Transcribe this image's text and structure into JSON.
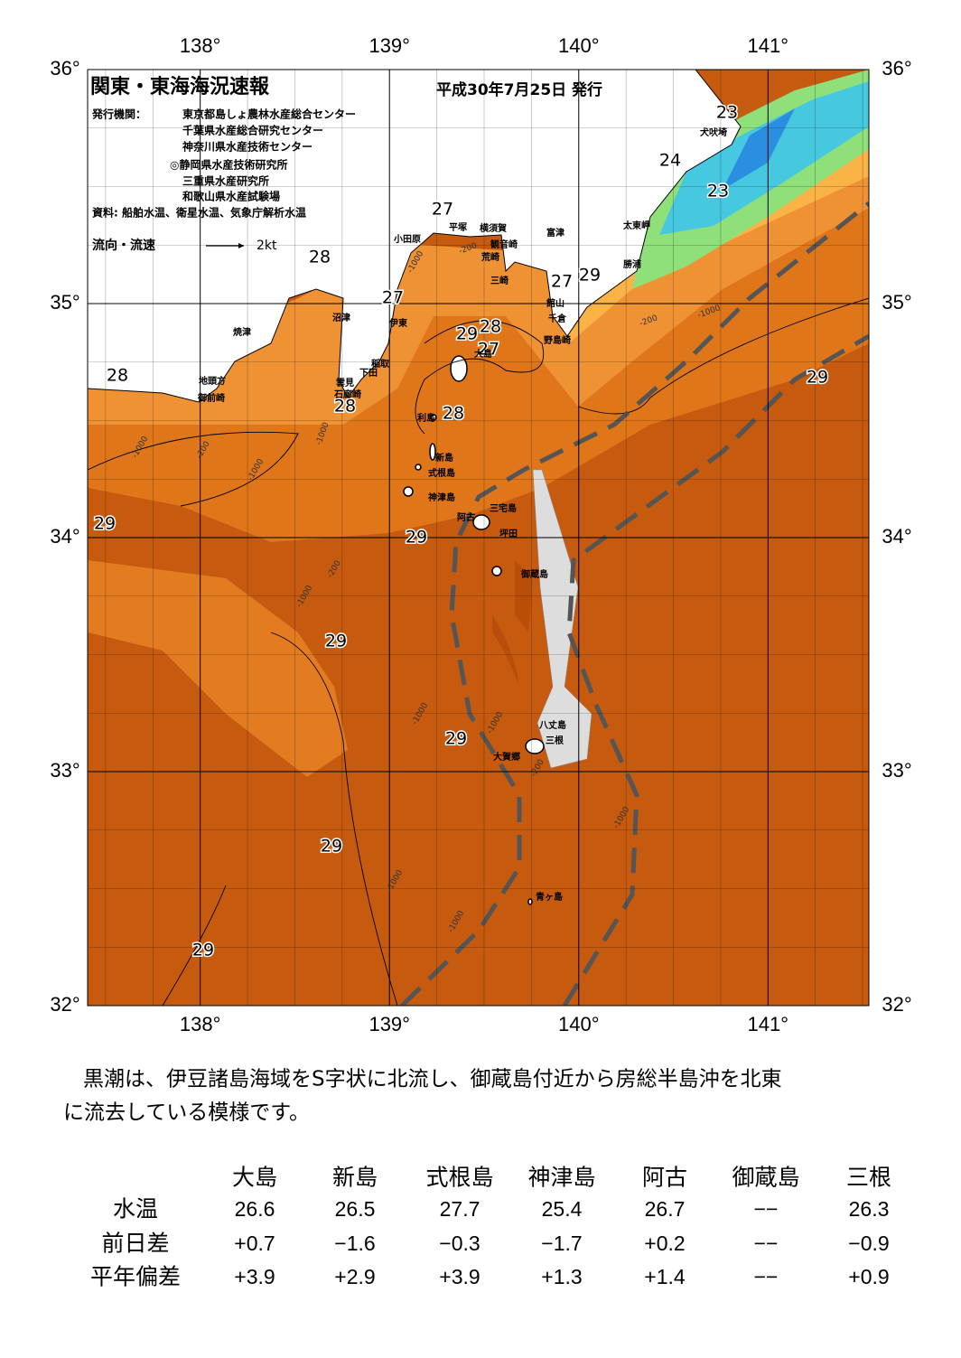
{
  "header": {
    "title": "関東・東海海況速報",
    "issued": "平成30年7月25日 発行",
    "publisher_label": "発行機関：",
    "publishers": [
      "東京都島しょ農林水産総合センター",
      "千葉県水産総合研究センター",
      "神奈川県水産技術センター",
      "◎静岡県水産技術研究所",
      "三重県水産研究所",
      "和歌山県水産試験場"
    ],
    "sources": "資料: 船舶水温、衛星水温、気象庁解析水温",
    "legend_label": "流向・流速",
    "legend_scale": "2kt"
  },
  "map": {
    "lonlim": [
      137.405,
      141.533
    ],
    "latlim": [
      32,
      36
    ],
    "lon_ticks": [
      {
        "value": 138,
        "label": "138°"
      },
      {
        "value": 139,
        "label": "139°"
      },
      {
        "value": 140,
        "label": "140°"
      },
      {
        "value": 141,
        "label": "141°"
      }
    ],
    "lat_ticks": [
      {
        "value": 32,
        "label": "32°"
      },
      {
        "value": 33,
        "label": "33°"
      },
      {
        "value": 34,
        "label": "34°"
      },
      {
        "value": 35,
        "label": "35°"
      },
      {
        "value": 36,
        "label": "36°"
      }
    ],
    "minor_step": 0.25,
    "temperature_labels": [
      23,
      24,
      23,
      27,
      28,
      27,
      27,
      29,
      29,
      28,
      27,
      28,
      28,
      28,
      29,
      29,
      29,
      29,
      29,
      29,
      29
    ],
    "depth_labels": [
      -1000,
      -200,
      -1000,
      -1000,
      -200,
      -1000,
      -1000,
      -1000,
      -200,
      -1000,
      -1000,
      -1000,
      -200,
      -1000,
      -1000,
      -200
    ],
    "place_names": [
      "犬吠埼",
      "太東岬",
      "勝浦",
      "富津",
      "館山",
      "千倉",
      "野島崎",
      "横須賀",
      "観音崎",
      "荒崎",
      "三崎",
      "平塚",
      "小田原",
      "沼津",
      "伊東",
      "稲取",
      "下田",
      "雲見",
      "石廊崎",
      "焼津",
      "地頭方",
      "御前崎",
      "大島",
      "利島",
      "新島",
      "式根島",
      "神津島",
      "三宅島",
      "阿古",
      "坪田",
      "御蔵島",
      "八丈島",
      "三根",
      "大賀郷",
      "青ヶ島"
    ]
  },
  "summary": [
    "黒潮は、伊豆諸島海域をS字状に北流し、御蔵島付近から房総半島沖を北東",
    "に流去している模様です。"
  ],
  "table": {
    "columns": [
      "大島",
      "新島",
      "式根島",
      "神津島",
      "阿古",
      "御蔵島",
      "三根"
    ],
    "rows": [
      {
        "label": "水温",
        "cells": [
          "26.6",
          "26.5",
          "27.7",
          "25.4",
          "26.7",
          "−−",
          "26.3"
        ]
      },
      {
        "label": "前日差",
        "cells": [
          "+0.7",
          "−1.6",
          "−0.3",
          "−1.7",
          "+0.2",
          "−−",
          "−0.9"
        ]
      },
      {
        "label": "平年偏差",
        "cells": [
          "+3.9",
          "+2.9",
          "+3.9",
          "+1.3",
          "+1.4",
          "−−",
          "+0.9"
        ]
      }
    ]
  }
}
